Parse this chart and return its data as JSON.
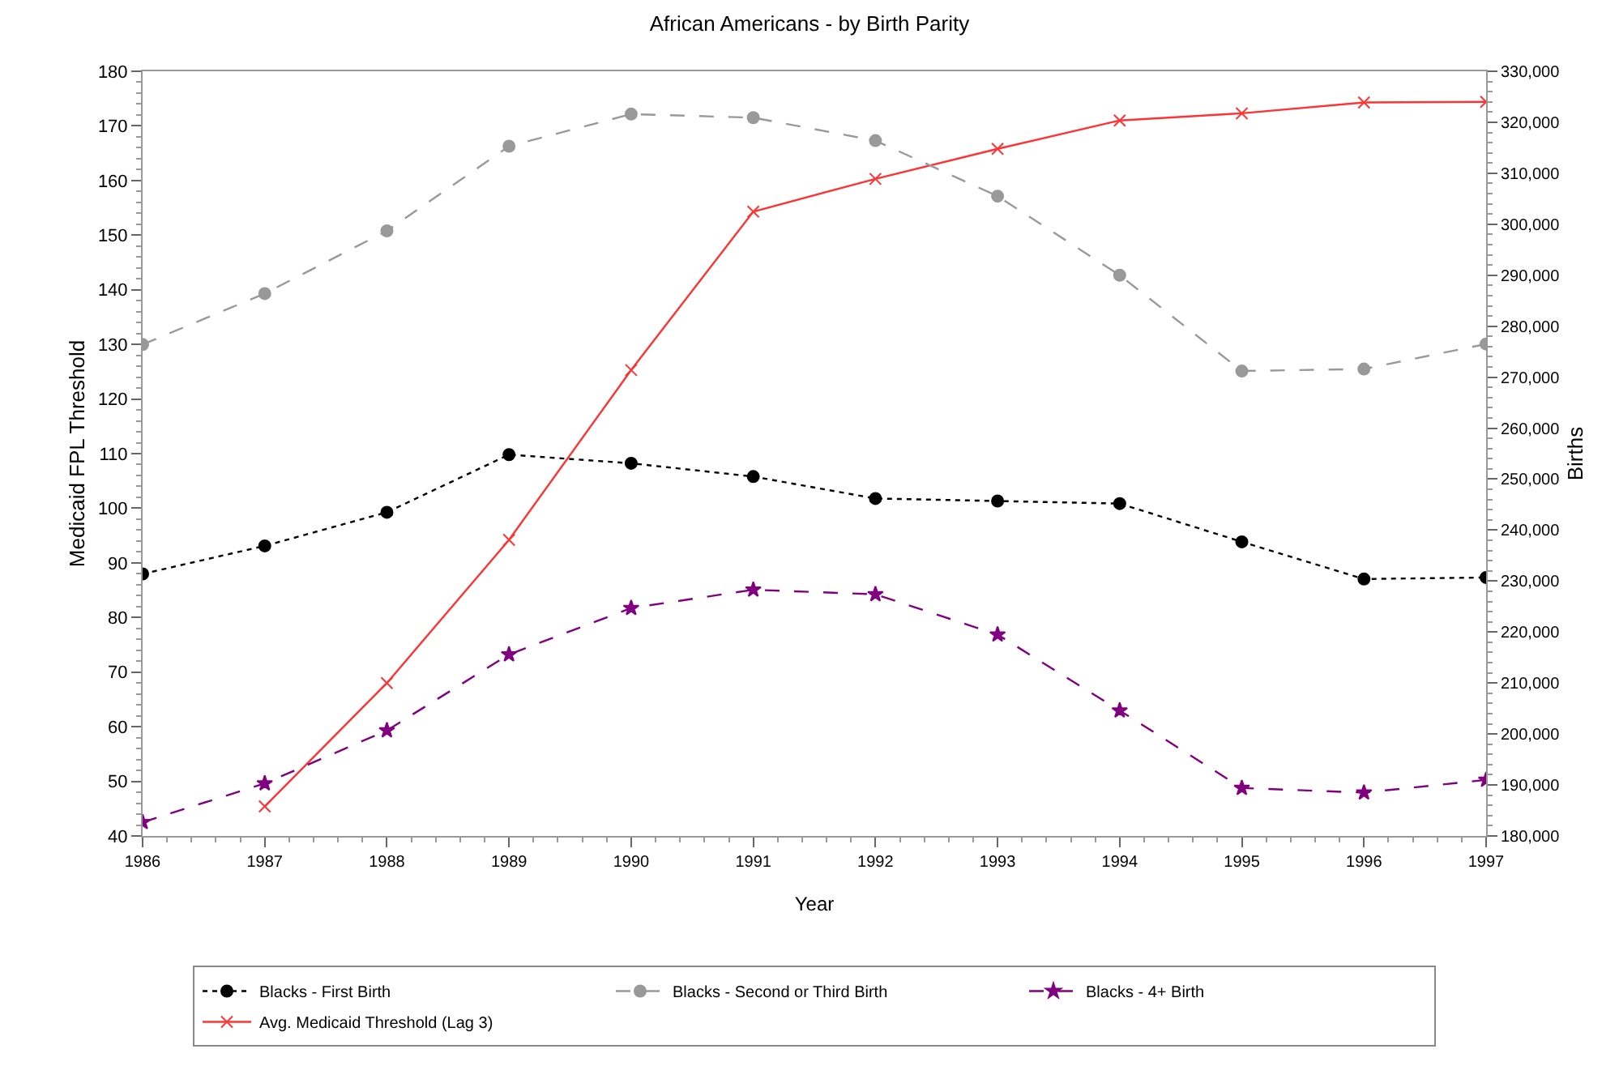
{
  "chart_data": {
    "type": "line",
    "title": "African Americans - by Birth Parity",
    "xlabel": "Year",
    "ylabel": "Medicaid FPL Threshold",
    "y2label": "Births",
    "x": [
      1986,
      1987,
      1988,
      1989,
      1990,
      1991,
      1992,
      1993,
      1994,
      1995,
      1996,
      1997
    ],
    "xlim": [
      1986,
      1997
    ],
    "xticks": [
      1986,
      1987,
      1988,
      1989,
      1990,
      1991,
      1992,
      1993,
      1994,
      1995,
      1996,
      1997
    ],
    "ylim": [
      40,
      180
    ],
    "yticks": [
      40,
      50,
      60,
      70,
      80,
      90,
      100,
      110,
      120,
      130,
      140,
      150,
      160,
      170,
      180
    ],
    "y2lim": [
      180000,
      330000
    ],
    "y2ticks": [
      {
        "value": 180000,
        "label": "180,000"
      },
      {
        "value": 190000,
        "label": "190,000"
      },
      {
        "value": 200000,
        "label": "200,000"
      },
      {
        "value": 210000,
        "label": "210,000"
      },
      {
        "value": 220000,
        "label": "220,000"
      },
      {
        "value": 230000,
        "label": "230,000"
      },
      {
        "value": 240000,
        "label": "240,000"
      },
      {
        "value": 250000,
        "label": "250,000"
      },
      {
        "value": 260000,
        "label": "260,000"
      },
      {
        "value": 270000,
        "label": "270,000"
      },
      {
        "value": 280000,
        "label": "280,000"
      },
      {
        "value": 290000,
        "label": "290,000"
      },
      {
        "value": 300000,
        "label": "300,000"
      },
      {
        "value": 310000,
        "label": "310,000"
      },
      {
        "value": 320000,
        "label": "320,000"
      },
      {
        "value": 330000,
        "label": "330,000"
      }
    ],
    "grid": false,
    "legend": "bottom",
    "series": [
      {
        "name": "Blacks - First Birth",
        "color": "#000000",
        "axis": "y2",
        "marker": "circle",
        "line_style": "dotted",
        "values": [
          231400,
          236900,
          243500,
          254800,
          253100,
          250500,
          246200,
          245700,
          245200,
          237700,
          230400,
          230700
        ]
      },
      {
        "name": "Blacks - Second or Third Birth",
        "color": "#999999",
        "axis": "y2",
        "marker": "circle",
        "line_style": "dashed",
        "values": [
          276400,
          286400,
          298700,
          315300,
          321600,
          320900,
          316400,
          305500,
          290000,
          271200,
          271600,
          276500
        ]
      },
      {
        "name": "Blacks - 4+ Birth",
        "color": "#800080",
        "axis": "y2",
        "marker": "star",
        "line_style": "dashed",
        "values": [
          182700,
          190300,
          200700,
          215600,
          224700,
          228300,
          227400,
          219500,
          204600,
          189400,
          188500,
          191000
        ]
      },
      {
        "name": "Avg. Medicaid Threshold (Lag 3)",
        "color": "#ff3333",
        "axis": "y",
        "marker": "cross",
        "line_style": "solid",
        "values": [
          null,
          45.4,
          68,
          94.2,
          125.3,
          154.3,
          160.3,
          165.8,
          171.0,
          172.3,
          174.3,
          174.4
        ]
      }
    ]
  }
}
